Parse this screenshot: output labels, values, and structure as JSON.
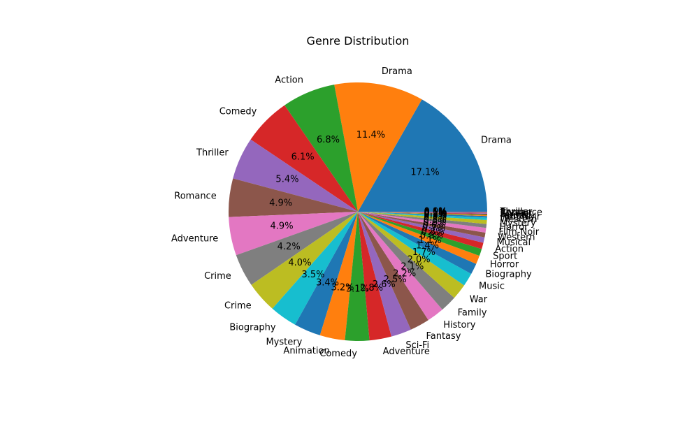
{
  "chart_data": {
    "type": "pie",
    "title": "Genre Distribution",
    "start_angle_deg": 0,
    "direction": "counterclockwise",
    "slices": [
      {
        "label": " Drama",
        "value": 17.1,
        "pct_label": "17.1%",
        "color": "#1f77b4"
      },
      {
        "label": "Drama",
        "value": 11.4,
        "pct_label": "11.4%",
        "color": "#ff7f0e"
      },
      {
        "label": "Action",
        "value": 6.8,
        "pct_label": "6.8%",
        "color": "#2ca02c"
      },
      {
        "label": "Comedy",
        "value": 6.1,
        "pct_label": "6.1%",
        "color": "#d62728"
      },
      {
        "label": " Thriller",
        "value": 5.4,
        "pct_label": "5.4%",
        "color": "#9467bd"
      },
      {
        "label": " Romance",
        "value": 4.9,
        "pct_label": "4.9%",
        "color": "#8c564b"
      },
      {
        "label": " Adventure",
        "value": 4.9,
        "pct_label": "4.9%",
        "color": "#e377c2"
      },
      {
        "label": "Crime",
        "value": 4.2,
        "pct_label": "4.2%",
        "color": "#7f7f7f"
      },
      {
        "label": " Crime",
        "value": 4.0,
        "pct_label": "4.0%",
        "color": "#bcbd22"
      },
      {
        "label": "Biography",
        "value": 3.5,
        "pct_label": "3.5%",
        "color": "#17becf"
      },
      {
        "label": " Mystery",
        "value": 3.4,
        "pct_label": "3.4%",
        "color": "#1f77b4"
      },
      {
        "label": "Animation",
        "value": 3.2,
        "pct_label": "3.2%",
        "color": "#ff7f0e"
      },
      {
        "label": " Comedy",
        "value": 3.1,
        "pct_label": "3.1%",
        "color": "#2ca02c"
      },
      {
        "label": "Adventure",
        "value": 2.8,
        "pct_label": "2.8%",
        "color": "#d62728"
      },
      {
        "label": " Sci-Fi",
        "value": 2.6,
        "pct_label": "2.6%",
        "color": "#9467bd"
      },
      {
        "label": " Fantasy",
        "value": 2.5,
        "pct_label": "2.5%",
        "color": "#8c564b"
      },
      {
        "label": " History",
        "value": 2.2,
        "pct_label": "2.2%",
        "color": "#e377c2"
      },
      {
        "label": " Family",
        "value": 2.1,
        "pct_label": "2.1%",
        "color": "#7f7f7f"
      },
      {
        "label": " War",
        "value": 2.0,
        "pct_label": "2.0%",
        "color": "#bcbd22"
      },
      {
        "label": " Music",
        "value": 1.7,
        "pct_label": "1.7%",
        "color": "#17becf"
      },
      {
        "label": " Biography",
        "value": 1.4,
        "pct_label": "1.4%",
        "color": "#1f77b4"
      },
      {
        "label": " Horror",
        "value": 1.1,
        "pct_label": "1.1%",
        "color": "#ff7f0e"
      },
      {
        "label": " Sport",
        "value": 0.9,
        "pct_label": "0.9%",
        "color": "#2ca02c"
      },
      {
        "label": " Action",
        "value": 0.8,
        "pct_label": "0.8%",
        "color": "#d62728"
      },
      {
        "label": " Musical",
        "value": 0.7,
        "pct_label": "0.7%",
        "color": "#9467bd"
      },
      {
        "label": " Western",
        "value": 0.6,
        "pct_label": "0.6%",
        "color": "#8c564b"
      },
      {
        "label": " Film-Noir",
        "value": 0.6,
        "pct_label": "0.6%",
        "color": "#e377c2"
      },
      {
        "label": "Horror",
        "value": 0.5,
        "pct_label": "0.5%",
        "color": "#7f7f7f"
      },
      {
        "label": "Mystery",
        "value": 0.5,
        "pct_label": "0.5%",
        "color": "#bcbd22"
      },
      {
        "label": "Western",
        "value": 0.3,
        "pct_label": "0.3%",
        "color": "#17becf"
      },
      {
        "label": "Film-Noir",
        "value": 0.2,
        "pct_label": "0.2%",
        "color": "#1f77b4"
      },
      {
        "label": "Fantasy",
        "value": 0.1,
        "pct_label": "0.1%",
        "color": "#ff7f0e"
      },
      {
        "label": "Family",
        "value": 0.1,
        "pct_label": "0.1%",
        "color": "#2ca02c"
      },
      {
        "label": "Sci-Fi",
        "value": 0.1,
        "pct_label": "0.1%",
        "color": "#d62728"
      },
      {
        "label": " Thriller",
        "value": 0.1,
        "pct_label": "0.1%",
        "color": "#9467bd"
      },
      {
        "label": "Romance",
        "value": 0.1,
        "pct_label": "0.1%",
        "color": "#8c564b"
      },
      {
        "label": "Thriller",
        "value": 0.05,
        "pct_label": "0.0%",
        "color": "#e377c2"
      }
    ]
  }
}
